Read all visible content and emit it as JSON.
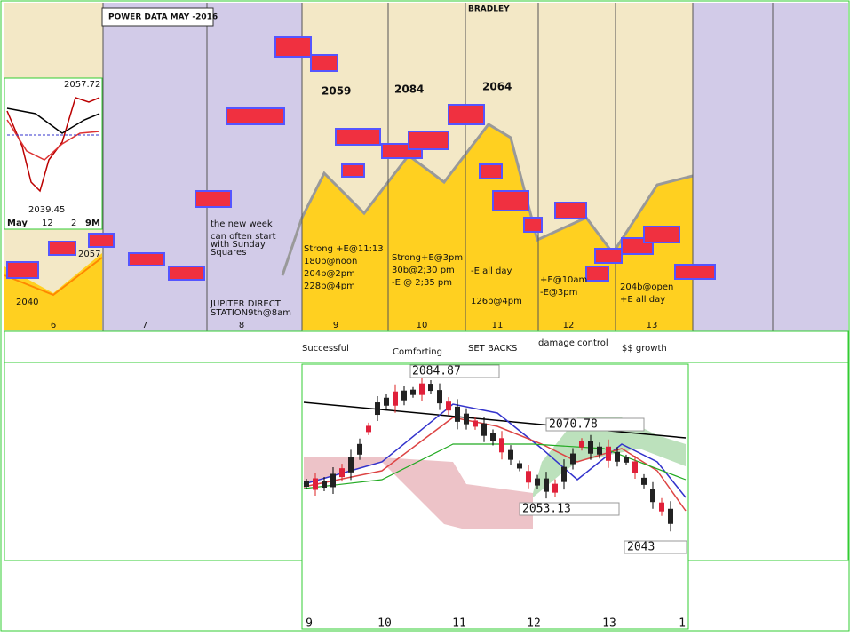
{
  "header": {
    "title": "POWER DATA MAY -2016",
    "bradley": "BRADLEY"
  },
  "peaks": [
    "2059",
    "2084",
    "2064"
  ],
  "inset": {
    "high": "2057.72",
    "low": "2039.45",
    "axis": [
      "May",
      "12",
      "2",
      "9M"
    ]
  },
  "levels": [
    "2057",
    "2040"
  ],
  "days": [
    "6",
    "7",
    "8",
    "9",
    "10",
    "11",
    "12",
    "13"
  ],
  "notes": {
    "new_week": [
      "the new week",
      "can often start",
      "with Sunday",
      "Squares"
    ],
    "jupiter": [
      "JUPITER DIRECT",
      "STATION9th@8am"
    ],
    "day9": [
      "Strong +E@11:13",
      "180b@noon",
      "204b@2pm",
      "228b@4pm"
    ],
    "day10": [
      "Strong+E@3pm",
      "30b@2;30 pm",
      "-E @ 2;35 pm"
    ],
    "day11": [
      "-E all day",
      "126b@4pm"
    ],
    "day12": [
      "+E@10am",
      "-E@3pm"
    ],
    "day13": [
      "204b@open",
      "+E all day"
    ]
  },
  "themes": [
    "Successful",
    "Comforting",
    "SET BACKS",
    "damage control",
    "$$ growth"
  ],
  "lower_chart": {
    "labels": [
      "2084.87",
      "2070.78",
      "2053.13",
      "2043"
    ],
    "axis": [
      "9",
      "10",
      "11",
      "12",
      "13",
      "1"
    ]
  }
}
